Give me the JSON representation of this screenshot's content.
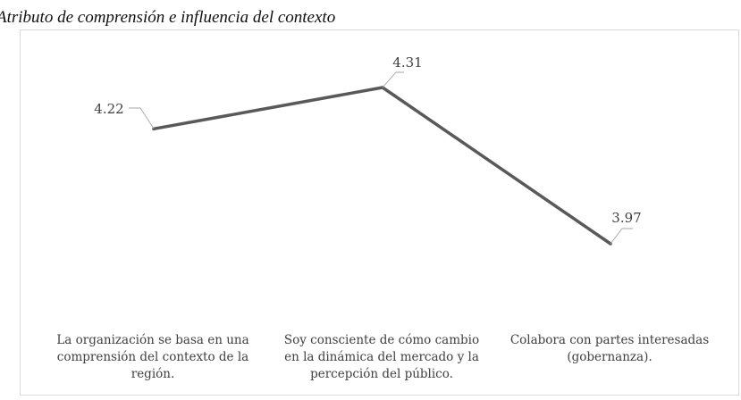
{
  "figure": {
    "title": "Atributo de comprensión e influencia del contexto"
  },
  "chart_data": {
    "type": "line",
    "categories": [
      "La organización se basa en una\ncomprensión del contexto de la\nregión.",
      "Soy consciente de cómo cambio\nen la dinámica  del mercado y la\npercepción del público.",
      "Colabora con partes interesadas\n(gobernanza)."
    ],
    "values": [
      4.22,
      4.31,
      3.97
    ],
    "data_labels": [
      "4.22",
      "4.31",
      "3.97"
    ],
    "line_color": "#595959",
    "grid": false,
    "legend": "none"
  }
}
